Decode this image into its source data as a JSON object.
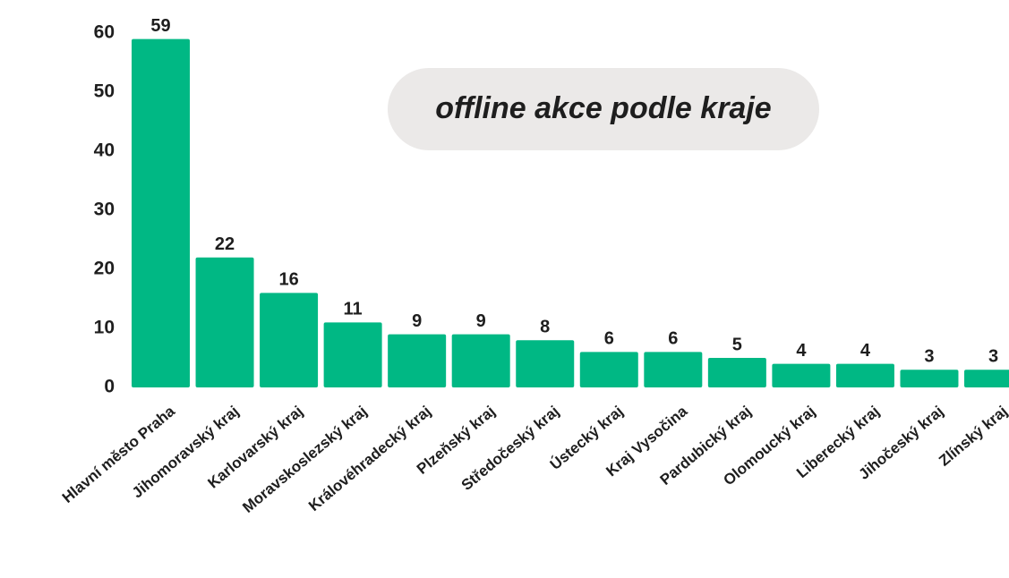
{
  "chart_data": {
    "type": "bar",
    "title": "offline akce podle kraje",
    "categories": [
      "Hlavní město Praha",
      "Jihomoravský kraj",
      "Karlovarský kraj",
      "Moravskoslezský kraj",
      "Královéhradecký kraj",
      "Plzeňský kraj",
      "Středočeský kraj",
      "Ústecký kraj",
      "Kraj Vysočina",
      "Pardubický kraj",
      "Olomoucký kraj",
      "Liberecký kraj",
      "Jihočeský kraj",
      "Zlínský kraj"
    ],
    "values": [
      59,
      22,
      16,
      11,
      9,
      9,
      8,
      6,
      6,
      5,
      4,
      4,
      3,
      3
    ],
    "color": "#00b884",
    "ylim": [
      0,
      60
    ],
    "yticks": [
      0,
      10,
      20,
      30,
      40,
      50,
      60
    ],
    "grid": false
  }
}
